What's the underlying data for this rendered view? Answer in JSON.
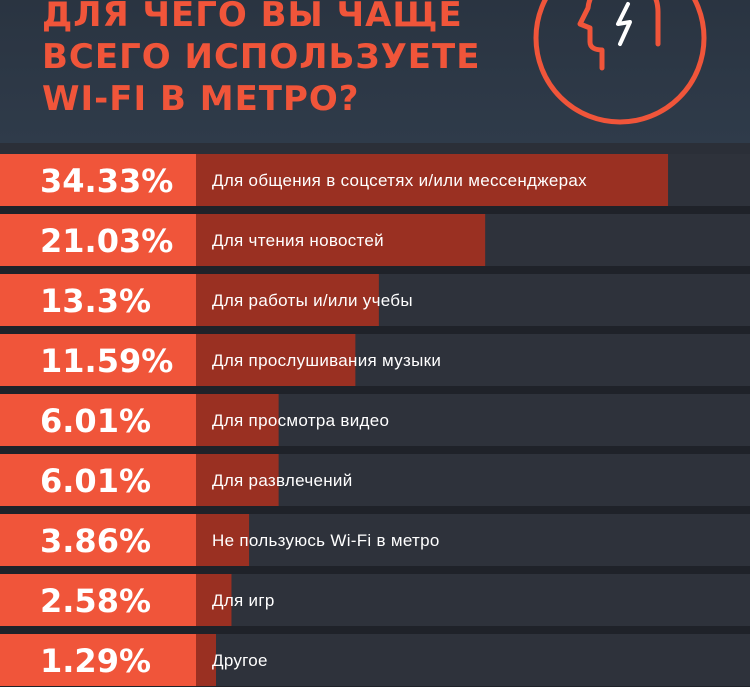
{
  "title_lines": [
    "ДЛЯ ЧЕГО ВЫ ЧАЩЕ",
    "ВСЕГО ИСПОЛЬЗУЕТЕ",
    "WI-FI В МЕТРО?"
  ],
  "colors": {
    "accent": "#f0553a",
    "bar": "#9a3022",
    "row_bg": "#2e323b",
    "separator": "#1f2229",
    "text": "#ffffff"
  },
  "icon": "head-profile-icon",
  "chart_data": {
    "type": "bar",
    "orientation": "horizontal",
    "title": "ДЛЯ ЧЕГО ВЫ ЧАЩЕ ВСЕГО ИСПОЛЬЗУЕТЕ WI-FI В МЕТРО?",
    "categories": [
      "Для общения в соцсетях и/или мессенджерах",
      "Для чтения новостей",
      "Для работы и/или учебы",
      "Для прослушивания музыки",
      "Для просмотра видео",
      "Для развлечений",
      "Не пользуюсь Wi-Fi в метро",
      "Для игр",
      "Другое"
    ],
    "values": [
      34.33,
      21.03,
      13.3,
      11.59,
      6.01,
      6.01,
      3.86,
      2.58,
      1.29
    ],
    "value_labels": [
      "34.33%",
      "21.03%",
      "13.3%",
      "11.59%",
      "6.01%",
      "6.01%",
      "3.86%",
      "2.58%",
      "1.29%"
    ],
    "xlim": [
      0,
      40
    ],
    "unit": "%",
    "grid": false
  }
}
